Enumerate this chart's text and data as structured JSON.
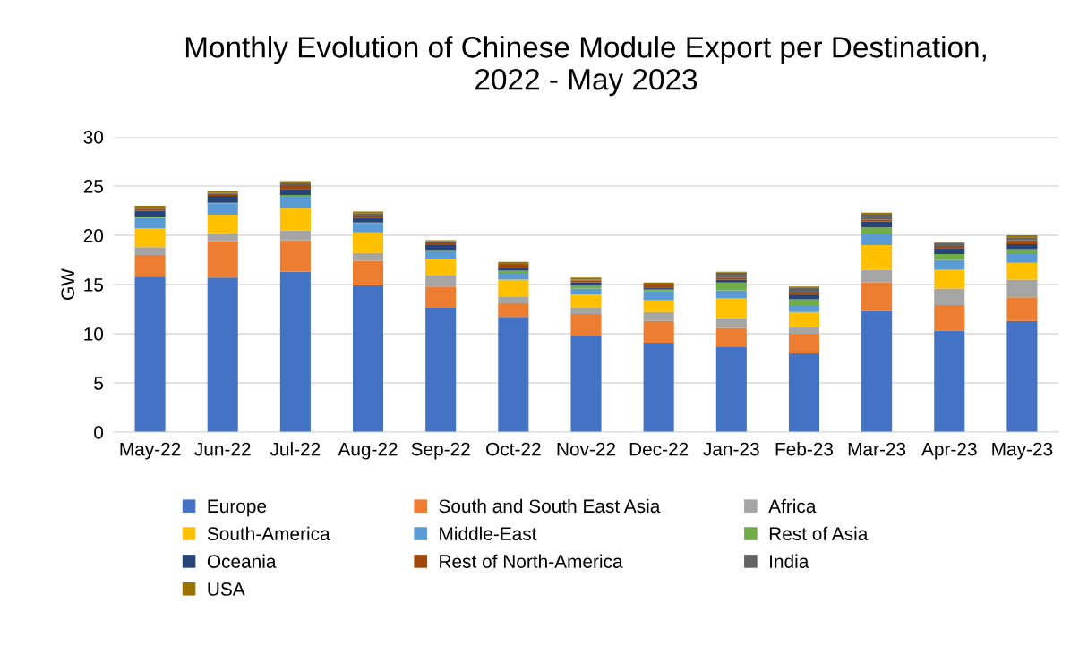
{
  "chart_data": {
    "type": "bar",
    "stacked": true,
    "title": "Monthly Evolution of Chinese Module Export per Destination,\n2022 - May 2023",
    "ylabel": "GW",
    "categories": [
      "May-22",
      "Jun-22",
      "Jul-22",
      "Aug-22",
      "Sep-22",
      "Oct-22",
      "Nov-22",
      "Dec-22",
      "Jan-23",
      "Feb-23",
      "Mar-23",
      "Apr-23",
      "May-23"
    ],
    "ylim": [
      0,
      30
    ],
    "yticks": [
      0,
      5,
      10,
      15,
      20,
      25,
      30
    ],
    "grid": "y",
    "legend": "bottom",
    "series": [
      {
        "name": "Europe",
        "color": "#4472c4",
        "values": [
          15.8,
          15.7,
          16.3,
          14.9,
          12.7,
          11.7,
          9.8,
          9.1,
          8.7,
          8.0,
          12.3,
          10.3,
          11.3
        ]
      },
      {
        "name": "South and South East Asia",
        "color": "#ed7d31",
        "values": [
          2.2,
          3.7,
          3.2,
          2.5,
          2.1,
          1.4,
          2.2,
          2.2,
          1.9,
          2.0,
          2.9,
          2.6,
          2.4
        ]
      },
      {
        "name": "Africa",
        "color": "#a5a5a5",
        "values": [
          0.8,
          0.8,
          1.0,
          0.8,
          1.1,
          0.7,
          0.7,
          0.9,
          1.0,
          0.7,
          1.3,
          1.7,
          1.8
        ]
      },
      {
        "name": "South-America",
        "color": "#ffc000",
        "values": [
          1.9,
          1.9,
          2.3,
          2.1,
          1.7,
          1.7,
          1.3,
          1.2,
          2.0,
          1.5,
          2.5,
          1.9,
          1.7
        ]
      },
      {
        "name": "Middle-East",
        "color": "#5b9bd5",
        "values": [
          1.1,
          1.1,
          1.2,
          0.9,
          0.8,
          0.6,
          0.6,
          0.9,
          0.8,
          0.7,
          1.1,
          1.0,
          0.9
        ]
      },
      {
        "name": "Rest of Asia",
        "color": "#70ad47",
        "values": [
          0.1,
          0.1,
          0.1,
          0.1,
          0.1,
          0.3,
          0.3,
          0.2,
          0.8,
          0.6,
          0.7,
          0.6,
          0.5
        ]
      },
      {
        "name": "Oceania",
        "color": "#264478",
        "values": [
          0.6,
          0.7,
          0.6,
          0.5,
          0.5,
          0.3,
          0.3,
          0.2,
          0.3,
          0.4,
          0.6,
          0.6,
          0.5
        ]
      },
      {
        "name": "Rest of North-America",
        "color": "#9e480e",
        "values": [
          0.2,
          0.2,
          0.4,
          0.2,
          0.3,
          0.3,
          0.2,
          0.3,
          0.2,
          0.2,
          0.2,
          0.2,
          0.4
        ]
      },
      {
        "name": "India",
        "color": "#636363",
        "values": [
          0.1,
          0.1,
          0.2,
          0.2,
          0.1,
          0.1,
          0.1,
          0.1,
          0.5,
          0.6,
          0.5,
          0.3,
          0.3
        ]
      },
      {
        "name": "USA",
        "color": "#997300",
        "values": [
          0.2,
          0.2,
          0.2,
          0.2,
          0.1,
          0.2,
          0.2,
          0.1,
          0.1,
          0.1,
          0.2,
          0.1,
          0.2
        ]
      }
    ]
  }
}
